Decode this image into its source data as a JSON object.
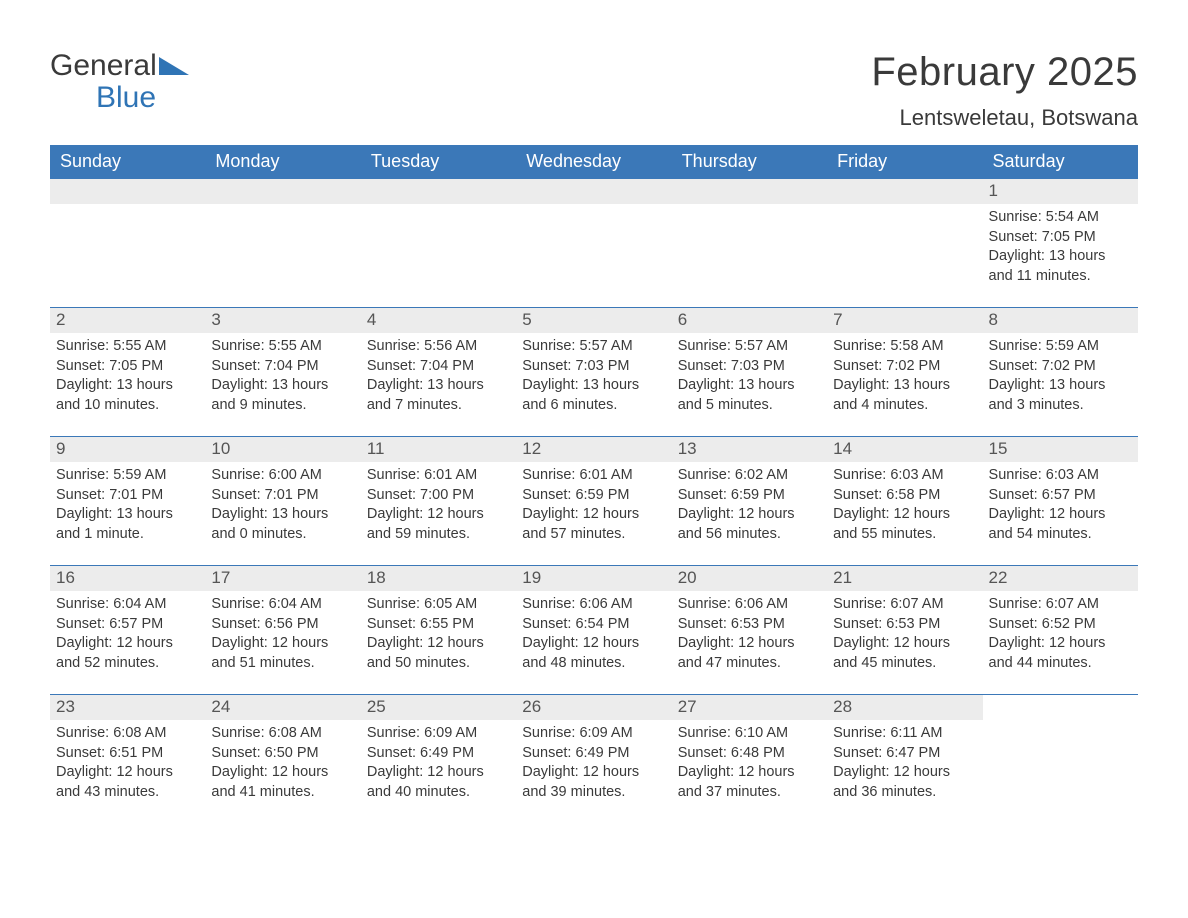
{
  "brand": {
    "word1": "General",
    "word2": "Blue"
  },
  "title": "February 2025",
  "location": "Lentsweletau, Botswana",
  "colors": {
    "header_bg": "#3b78b8",
    "header_text": "#ffffff",
    "row_divider": "#3b78b8",
    "daynum_bg": "#ececec",
    "body_text": "#3a3a3a",
    "brand_blue": "#2f74b5",
    "page_bg": "#ffffff"
  },
  "typography": {
    "title_fontsize": 40,
    "location_fontsize": 22,
    "weekday_fontsize": 18,
    "daynum_fontsize": 17,
    "detail_fontsize": 14.5
  },
  "weekdays": [
    "Sunday",
    "Monday",
    "Tuesday",
    "Wednesday",
    "Thursday",
    "Friday",
    "Saturday"
  ],
  "weeks": [
    [
      null,
      null,
      null,
      null,
      null,
      null,
      {
        "n": "1",
        "sr": "Sunrise: 5:54 AM",
        "ss": "Sunset: 7:05 PM",
        "d1": "Daylight: 13 hours",
        "d2": "and 11 minutes."
      }
    ],
    [
      {
        "n": "2",
        "sr": "Sunrise: 5:55 AM",
        "ss": "Sunset: 7:05 PM",
        "d1": "Daylight: 13 hours",
        "d2": "and 10 minutes."
      },
      {
        "n": "3",
        "sr": "Sunrise: 5:55 AM",
        "ss": "Sunset: 7:04 PM",
        "d1": "Daylight: 13 hours",
        "d2": "and 9 minutes."
      },
      {
        "n": "4",
        "sr": "Sunrise: 5:56 AM",
        "ss": "Sunset: 7:04 PM",
        "d1": "Daylight: 13 hours",
        "d2": "and 7 minutes."
      },
      {
        "n": "5",
        "sr": "Sunrise: 5:57 AM",
        "ss": "Sunset: 7:03 PM",
        "d1": "Daylight: 13 hours",
        "d2": "and 6 minutes."
      },
      {
        "n": "6",
        "sr": "Sunrise: 5:57 AM",
        "ss": "Sunset: 7:03 PM",
        "d1": "Daylight: 13 hours",
        "d2": "and 5 minutes."
      },
      {
        "n": "7",
        "sr": "Sunrise: 5:58 AM",
        "ss": "Sunset: 7:02 PM",
        "d1": "Daylight: 13 hours",
        "d2": "and 4 minutes."
      },
      {
        "n": "8",
        "sr": "Sunrise: 5:59 AM",
        "ss": "Sunset: 7:02 PM",
        "d1": "Daylight: 13 hours",
        "d2": "and 3 minutes."
      }
    ],
    [
      {
        "n": "9",
        "sr": "Sunrise: 5:59 AM",
        "ss": "Sunset: 7:01 PM",
        "d1": "Daylight: 13 hours",
        "d2": "and 1 minute."
      },
      {
        "n": "10",
        "sr": "Sunrise: 6:00 AM",
        "ss": "Sunset: 7:01 PM",
        "d1": "Daylight: 13 hours",
        "d2": "and 0 minutes."
      },
      {
        "n": "11",
        "sr": "Sunrise: 6:01 AM",
        "ss": "Sunset: 7:00 PM",
        "d1": "Daylight: 12 hours",
        "d2": "and 59 minutes."
      },
      {
        "n": "12",
        "sr": "Sunrise: 6:01 AM",
        "ss": "Sunset: 6:59 PM",
        "d1": "Daylight: 12 hours",
        "d2": "and 57 minutes."
      },
      {
        "n": "13",
        "sr": "Sunrise: 6:02 AM",
        "ss": "Sunset: 6:59 PM",
        "d1": "Daylight: 12 hours",
        "d2": "and 56 minutes."
      },
      {
        "n": "14",
        "sr": "Sunrise: 6:03 AM",
        "ss": "Sunset: 6:58 PM",
        "d1": "Daylight: 12 hours",
        "d2": "and 55 minutes."
      },
      {
        "n": "15",
        "sr": "Sunrise: 6:03 AM",
        "ss": "Sunset: 6:57 PM",
        "d1": "Daylight: 12 hours",
        "d2": "and 54 minutes."
      }
    ],
    [
      {
        "n": "16",
        "sr": "Sunrise: 6:04 AM",
        "ss": "Sunset: 6:57 PM",
        "d1": "Daylight: 12 hours",
        "d2": "and 52 minutes."
      },
      {
        "n": "17",
        "sr": "Sunrise: 6:04 AM",
        "ss": "Sunset: 6:56 PM",
        "d1": "Daylight: 12 hours",
        "d2": "and 51 minutes."
      },
      {
        "n": "18",
        "sr": "Sunrise: 6:05 AM",
        "ss": "Sunset: 6:55 PM",
        "d1": "Daylight: 12 hours",
        "d2": "and 50 minutes."
      },
      {
        "n": "19",
        "sr": "Sunrise: 6:06 AM",
        "ss": "Sunset: 6:54 PM",
        "d1": "Daylight: 12 hours",
        "d2": "and 48 minutes."
      },
      {
        "n": "20",
        "sr": "Sunrise: 6:06 AM",
        "ss": "Sunset: 6:53 PM",
        "d1": "Daylight: 12 hours",
        "d2": "and 47 minutes."
      },
      {
        "n": "21",
        "sr": "Sunrise: 6:07 AM",
        "ss": "Sunset: 6:53 PM",
        "d1": "Daylight: 12 hours",
        "d2": "and 45 minutes."
      },
      {
        "n": "22",
        "sr": "Sunrise: 6:07 AM",
        "ss": "Sunset: 6:52 PM",
        "d1": "Daylight: 12 hours",
        "d2": "and 44 minutes."
      }
    ],
    [
      {
        "n": "23",
        "sr": "Sunrise: 6:08 AM",
        "ss": "Sunset: 6:51 PM",
        "d1": "Daylight: 12 hours",
        "d2": "and 43 minutes."
      },
      {
        "n": "24",
        "sr": "Sunrise: 6:08 AM",
        "ss": "Sunset: 6:50 PM",
        "d1": "Daylight: 12 hours",
        "d2": "and 41 minutes."
      },
      {
        "n": "25",
        "sr": "Sunrise: 6:09 AM",
        "ss": "Sunset: 6:49 PM",
        "d1": "Daylight: 12 hours",
        "d2": "and 40 minutes."
      },
      {
        "n": "26",
        "sr": "Sunrise: 6:09 AM",
        "ss": "Sunset: 6:49 PM",
        "d1": "Daylight: 12 hours",
        "d2": "and 39 minutes."
      },
      {
        "n": "27",
        "sr": "Sunrise: 6:10 AM",
        "ss": "Sunset: 6:48 PM",
        "d1": "Daylight: 12 hours",
        "d2": "and 37 minutes."
      },
      {
        "n": "28",
        "sr": "Sunrise: 6:11 AM",
        "ss": "Sunset: 6:47 PM",
        "d1": "Daylight: 12 hours",
        "d2": "and 36 minutes."
      },
      null
    ]
  ]
}
